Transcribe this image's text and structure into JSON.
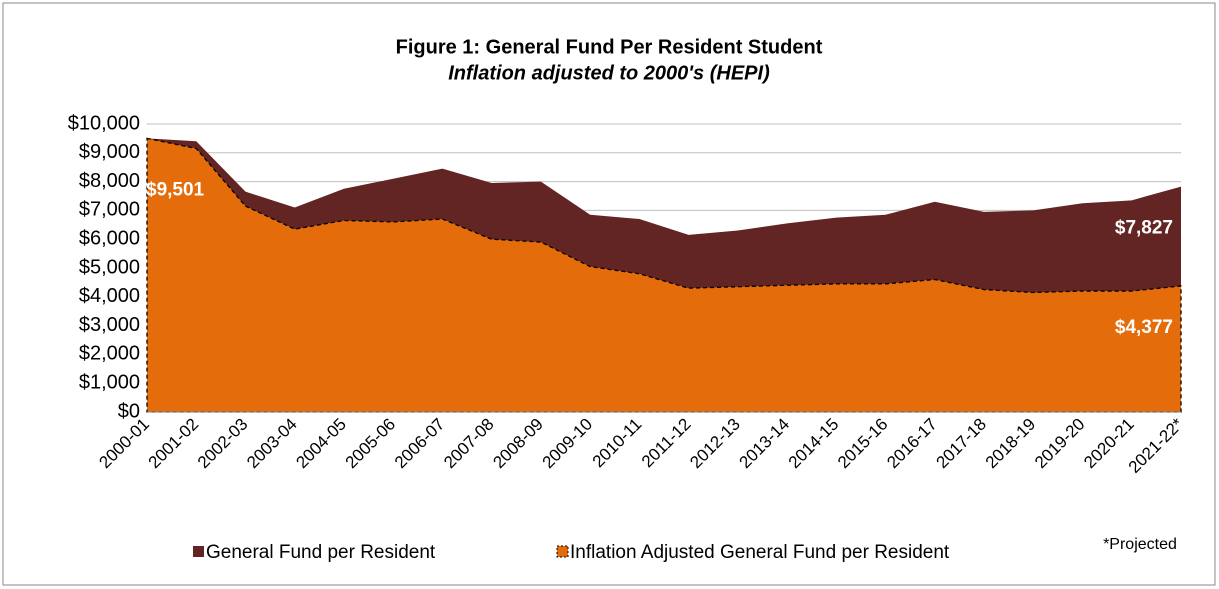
{
  "chart_data": {
    "type": "area",
    "title": "Figure 1: General Fund Per Resident Student",
    "subtitle": "Inflation adjusted to 2000's (HEPI)",
    "categories": [
      "2000-01",
      "2001-02",
      "2002-03",
      "2003-04",
      "2004-05",
      "2005-06",
      "2006-07",
      "2007-08",
      "2008-09",
      "2009-10",
      "2010-11",
      "2011-12",
      "2012-13",
      "2013-14",
      "2014-15",
      "2015-16",
      "2016-17",
      "2017-18",
      "2018-19",
      "2019-20",
      "2020-21",
      "2021-22*"
    ],
    "series": [
      {
        "name": "General Fund per Resident",
        "color": "#632523",
        "values": [
          9501,
          9400,
          7650,
          7100,
          7750,
          8100,
          8450,
          7950,
          8000,
          6850,
          6700,
          6150,
          6300,
          6550,
          6750,
          6850,
          7300,
          6950,
          7000,
          7250,
          7350,
          7827
        ],
        "value_labels": [
          "$9,501",
          null,
          null,
          null,
          null,
          null,
          null,
          null,
          null,
          null,
          null,
          null,
          null,
          null,
          null,
          null,
          null,
          null,
          null,
          null,
          null,
          "$7,827"
        ]
      },
      {
        "name": "Inflation Adjusted General Fund per Resident",
        "color": "#e46c0a",
        "values": [
          9501,
          9150,
          7150,
          6350,
          6650,
          6600,
          6700,
          6000,
          5900,
          5050,
          4800,
          4300,
          4350,
          4400,
          4450,
          4450,
          4600,
          4250,
          4150,
          4200,
          4200,
          4377
        ],
        "value_labels": [
          null,
          null,
          null,
          null,
          null,
          null,
          null,
          null,
          null,
          null,
          null,
          null,
          null,
          null,
          null,
          null,
          null,
          null,
          null,
          null,
          null,
          "$4,377"
        ]
      }
    ],
    "ylim": [
      0,
      10000
    ],
    "yticks": [
      {
        "value": 0,
        "label": "$0"
      },
      {
        "value": 1000,
        "label": "$1,000"
      },
      {
        "value": 2000,
        "label": "$2,000"
      },
      {
        "value": 3000,
        "label": "$3,000"
      },
      {
        "value": 4000,
        "label": "$4,000"
      },
      {
        "value": 5000,
        "label": "$5,000"
      },
      {
        "value": 6000,
        "label": "$6,000"
      },
      {
        "value": 7000,
        "label": "$7,000"
      },
      {
        "value": 8000,
        "label": "$8,000"
      },
      {
        "value": 9000,
        "label": "$9,000"
      },
      {
        "value": 10000,
        "label": "$10,000"
      }
    ],
    "grid": true,
    "legend": "bottom",
    "footnote": "*Projected"
  }
}
